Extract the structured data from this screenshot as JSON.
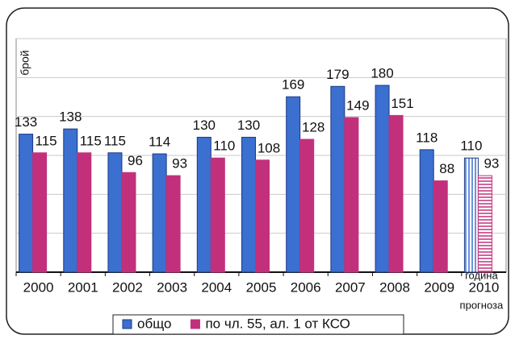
{
  "chart_data": {
    "type": "bar",
    "y_label": "брой",
    "categories": [
      "2000",
      "2001",
      "2002",
      "2003",
      "2004",
      "2005",
      "2006",
      "2007",
      "2008",
      "2009",
      "2010"
    ],
    "series": [
      {
        "name": "общо",
        "color": "#3b6fd0",
        "values": [
          133,
          138,
          115,
          114,
          130,
          130,
          169,
          179,
          180,
          118,
          110
        ]
      },
      {
        "name": "по чл. 55, ал. 1 от КСО",
        "color": "#c2307c",
        "values": [
          115,
          115,
          96,
          93,
          110,
          108,
          128,
          149,
          151,
          88,
          93
        ]
      }
    ],
    "annotation_above_last": "година",
    "annotation_below_last": "прогноза",
    "hatch_last": true,
    "ylim": [
      0,
      225
    ],
    "yticks": [
      0,
      37.5,
      75,
      112.5,
      150,
      187.5,
      225
    ],
    "grid": true,
    "legend": "bottom"
  }
}
